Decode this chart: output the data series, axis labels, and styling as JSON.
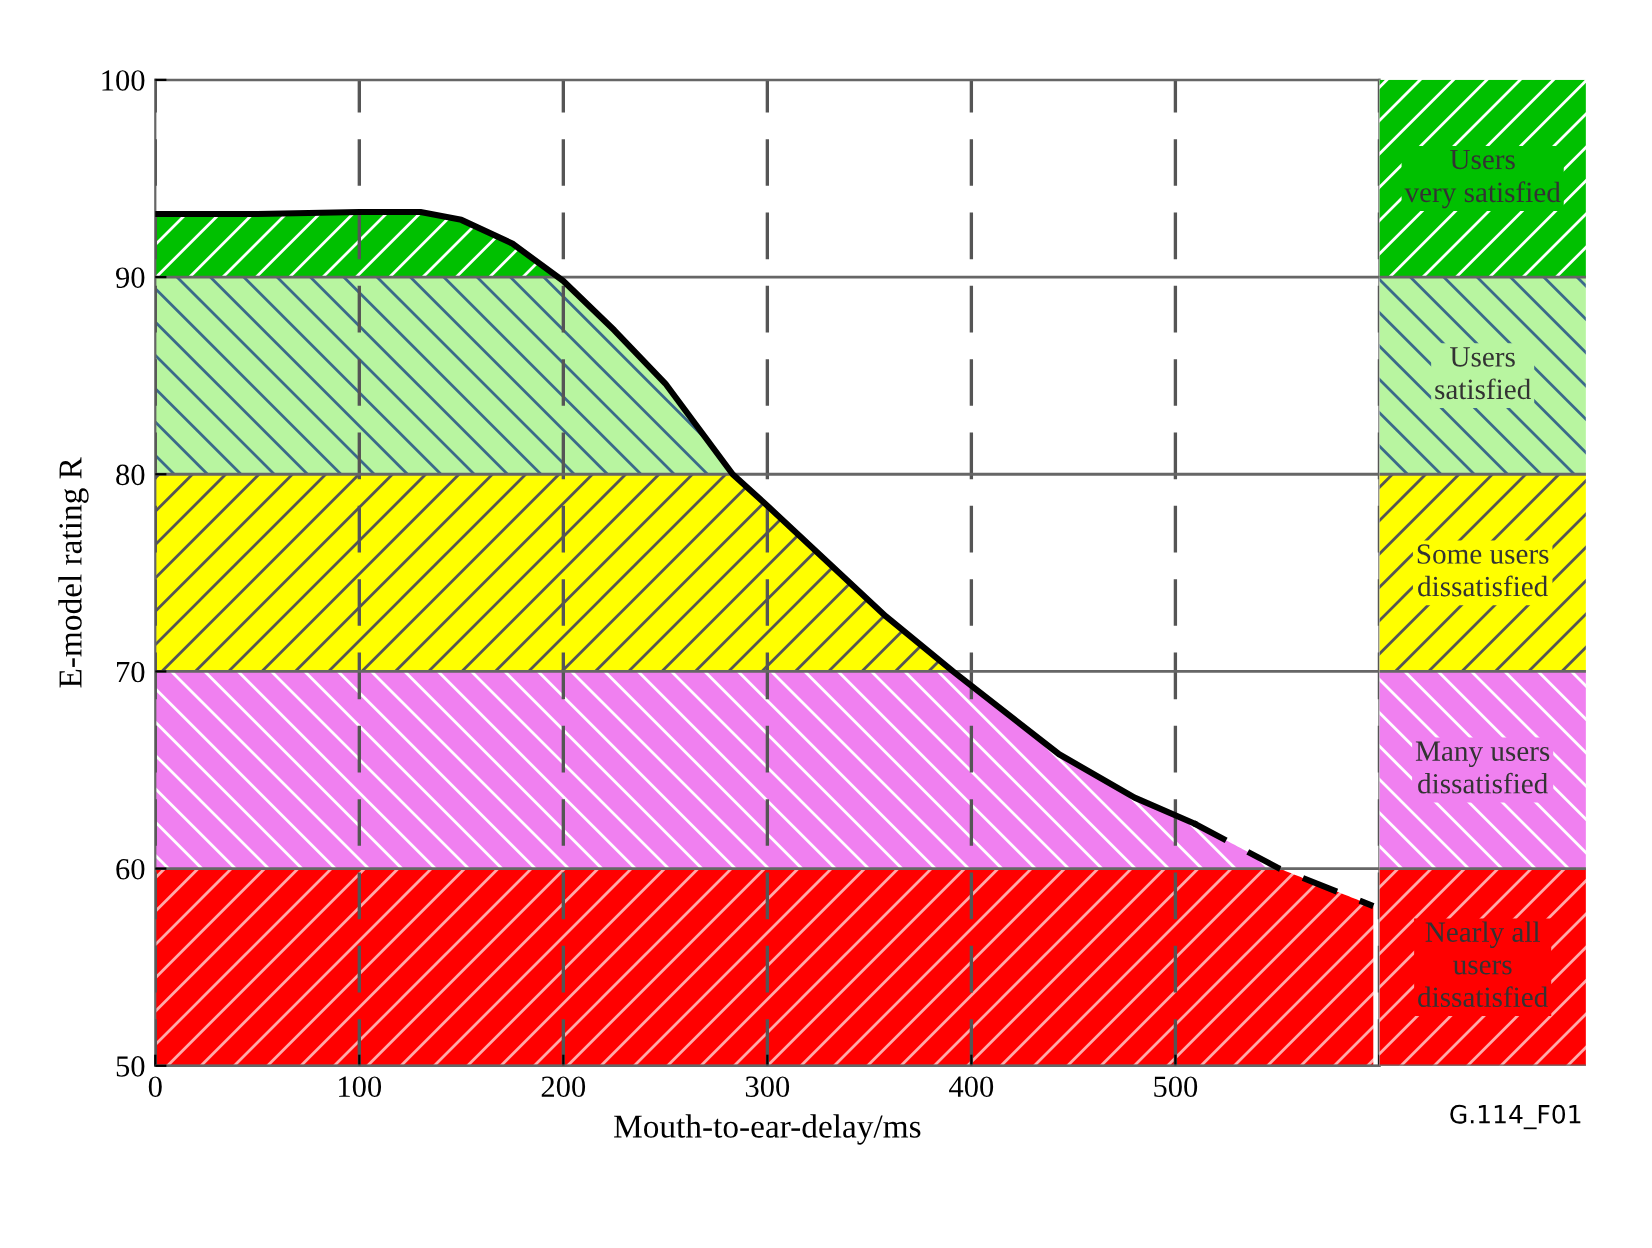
{
  "chart_data": {
    "type": "line",
    "xlabel": "Mouth-to-ear-delay/ms",
    "ylabel": "E-model rating R",
    "xlim": [
      0,
      600
    ],
    "ylim": [
      50,
      100
    ],
    "xticks": [
      0,
      100,
      200,
      300,
      400,
      500,
      {
        "value": 600,
        "label": null
      }
    ],
    "yticks": [
      50,
      60,
      70,
      80,
      90,
      100
    ],
    "grid": true,
    "series": [
      {
        "color": "#000000",
        "line_style": "solid",
        "x": [
          0,
          50,
          100,
          130,
          150,
          175,
          200,
          225,
          250,
          283,
          300,
          358,
          391,
          443,
          480,
          509
        ],
        "values": [
          93.2,
          93.2,
          93.3,
          93.3,
          92.9,
          91.7,
          89.8,
          87.3,
          84.6,
          80,
          78.4,
          72.8,
          70,
          65.8,
          63.6,
          62.3
        ]
      },
      {
        "color": "#000000",
        "line_style": "dashed",
        "x": [
          509,
          551,
          597
        ],
        "values": [
          62.3,
          60,
          58.1
        ]
      }
    ],
    "bands": [
      {
        "axis": "y",
        "from": 90,
        "to": 100,
        "label": "Users\nvery satisfied",
        "color": "#00c000"
      },
      {
        "axis": "y",
        "from": 80,
        "to": 90,
        "label": "Users\nsatisfied",
        "color": "#b8f5a0"
      },
      {
        "axis": "y",
        "from": 70,
        "to": 80,
        "label": "Some users\ndissatisfied",
        "color": "#ffff00"
      },
      {
        "axis": "y",
        "from": 60,
        "to": 70,
        "label": "Many users\ndissatisfied",
        "color": "#f080f0"
      },
      {
        "axis": "y",
        "from": 50,
        "to": 60,
        "label": "Nearly all\nusers\ndissatisfied",
        "color": "#ff0000"
      }
    ],
    "annotations": [
      "G.114_F01"
    ]
  }
}
